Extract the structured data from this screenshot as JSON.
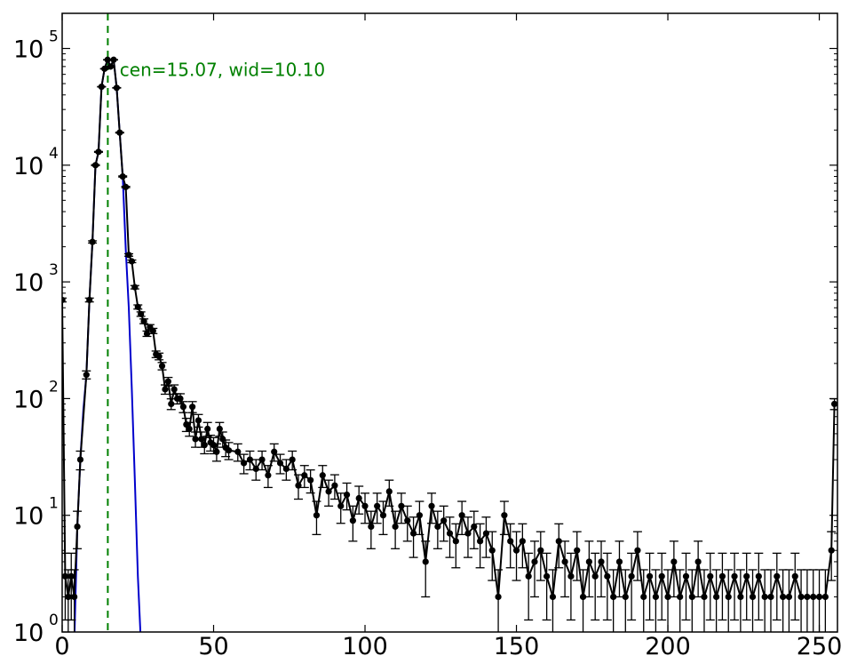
{
  "chart_data": {
    "type": "scatter",
    "title": "",
    "xlabel": "",
    "ylabel": "",
    "xlim": [
      0,
      256
    ],
    "ylim": [
      1,
      200000
    ],
    "yscale": "log",
    "grid": false,
    "x_ticks": [
      0,
      50,
      100,
      150,
      200,
      250
    ],
    "y_ticks": [
      {
        "value": 1,
        "base": "10",
        "exp": "0"
      },
      {
        "value": 10,
        "base": "10",
        "exp": "1"
      },
      {
        "value": 100,
        "base": "10",
        "exp": "2"
      },
      {
        "value": 1000,
        "base": "10",
        "exp": "3"
      },
      {
        "value": 10000,
        "base": "10",
        "exp": "4"
      },
      {
        "value": 100000,
        "base": "10",
        "exp": "5"
      }
    ],
    "annotation": {
      "text": "cen=15.07, wid=10.10",
      "x": 19,
      "y": 100000,
      "color": "#008000"
    },
    "vline": {
      "x": 15.07,
      "color": "#008000",
      "style": "dashed"
    },
    "series": [
      {
        "kind": "data-with-errorbars",
        "color": "#000000",
        "points": [
          [
            0,
            700
          ],
          [
            1,
            3
          ],
          [
            2,
            2
          ],
          [
            3,
            3
          ],
          [
            4,
            2
          ],
          [
            5,
            8
          ],
          [
            6,
            30
          ],
          [
            8,
            160
          ],
          [
            9,
            700
          ],
          [
            10,
            2200
          ],
          [
            11,
            10000
          ],
          [
            12,
            13000
          ],
          [
            13,
            47000
          ],
          [
            14,
            67000
          ],
          [
            15,
            80000
          ],
          [
            16,
            70000
          ],
          [
            17,
            80000
          ],
          [
            18,
            46000
          ],
          [
            19,
            19000
          ],
          [
            20,
            8000
          ],
          [
            21,
            6500
          ],
          [
            22,
            1700
          ],
          [
            23,
            1500
          ],
          [
            24,
            900
          ],
          [
            25,
            610
          ],
          [
            26,
            530
          ],
          [
            27,
            460
          ],
          [
            28,
            360
          ],
          [
            29,
            410
          ],
          [
            30,
            380
          ],
          [
            31,
            240
          ],
          [
            32,
            230
          ],
          [
            33,
            190
          ],
          [
            34,
            120
          ],
          [
            35,
            140
          ],
          [
            36,
            90
          ],
          [
            37,
            120
          ],
          [
            38,
            100
          ],
          [
            39,
            100
          ],
          [
            40,
            85
          ],
          [
            41,
            60
          ],
          [
            42,
            55
          ],
          [
            43,
            85
          ],
          [
            44,
            45
          ],
          [
            45,
            65
          ],
          [
            46,
            45
          ],
          [
            47,
            40
          ],
          [
            48,
            55
          ],
          [
            49,
            42
          ],
          [
            50,
            40
          ],
          [
            51,
            35
          ],
          [
            52,
            55
          ],
          [
            53,
            45
          ],
          [
            54,
            38
          ],
          [
            55,
            36
          ],
          [
            58,
            35
          ],
          [
            60,
            28
          ],
          [
            62,
            30
          ],
          [
            64,
            25
          ],
          [
            66,
            30
          ],
          [
            68,
            22
          ],
          [
            70,
            35
          ],
          [
            72,
            28
          ],
          [
            74,
            25
          ],
          [
            76,
            30
          ],
          [
            78,
            18
          ],
          [
            80,
            22
          ],
          [
            82,
            20
          ],
          [
            84,
            10
          ],
          [
            86,
            22
          ],
          [
            88,
            16
          ],
          [
            90,
            18
          ],
          [
            92,
            12
          ],
          [
            94,
            15
          ],
          [
            96,
            9
          ],
          [
            98,
            14
          ],
          [
            100,
            12
          ],
          [
            102,
            8
          ],
          [
            104,
            12
          ],
          [
            106,
            10
          ],
          [
            108,
            16
          ],
          [
            110,
            8
          ],
          [
            112,
            12
          ],
          [
            114,
            9
          ],
          [
            116,
            7
          ],
          [
            118,
            10
          ],
          [
            120,
            4
          ],
          [
            122,
            12
          ],
          [
            124,
            8
          ],
          [
            126,
            9
          ],
          [
            128,
            7
          ],
          [
            130,
            6
          ],
          [
            132,
            10
          ],
          [
            134,
            7
          ],
          [
            136,
            8
          ],
          [
            138,
            6
          ],
          [
            140,
            7
          ],
          [
            142,
            5
          ],
          [
            144,
            2
          ],
          [
            146,
            10
          ],
          [
            148,
            6
          ],
          [
            150,
            5
          ],
          [
            152,
            6
          ],
          [
            154,
            3
          ],
          [
            156,
            4
          ],
          [
            158,
            5
          ],
          [
            160,
            3
          ],
          [
            162,
            2
          ],
          [
            164,
            6
          ],
          [
            166,
            4
          ],
          [
            168,
            3
          ],
          [
            170,
            5
          ],
          [
            172,
            2
          ],
          [
            174,
            4
          ],
          [
            176,
            3
          ],
          [
            178,
            4
          ],
          [
            180,
            3
          ],
          [
            182,
            2
          ],
          [
            184,
            4
          ],
          [
            186,
            2
          ],
          [
            188,
            3
          ],
          [
            190,
            5
          ],
          [
            192,
            2
          ],
          [
            194,
            3
          ],
          [
            196,
            2
          ],
          [
            198,
            3
          ],
          [
            200,
            2
          ],
          [
            202,
            4
          ],
          [
            204,
            2
          ],
          [
            206,
            3
          ],
          [
            208,
            2
          ],
          [
            210,
            4
          ],
          [
            212,
            2
          ],
          [
            214,
            3
          ],
          [
            216,
            2
          ],
          [
            218,
            3
          ],
          [
            220,
            2
          ],
          [
            222,
            3
          ],
          [
            224,
            2
          ],
          [
            226,
            3
          ],
          [
            228,
            2
          ],
          [
            230,
            3
          ],
          [
            232,
            2
          ],
          [
            234,
            2
          ],
          [
            236,
            3
          ],
          [
            238,
            2
          ],
          [
            240,
            2
          ],
          [
            242,
            3
          ],
          [
            244,
            2
          ],
          [
            246,
            2
          ],
          [
            248,
            2
          ],
          [
            250,
            2
          ],
          [
            252,
            2
          ],
          [
            254,
            5
          ],
          [
            255,
            90
          ]
        ]
      },
      {
        "kind": "gaussian-fit",
        "color": "#0000cc",
        "points": [
          [
            4,
            0.8
          ],
          [
            5,
            8
          ],
          [
            6,
            30
          ],
          [
            7,
            80
          ],
          [
            8,
            160
          ],
          [
            9,
            700
          ],
          [
            10,
            2200
          ],
          [
            11,
            10000
          ],
          [
            12,
            13000
          ],
          [
            13,
            47000
          ],
          [
            14,
            67000
          ],
          [
            15,
            80000
          ],
          [
            16,
            70000
          ],
          [
            17,
            80000
          ],
          [
            18,
            46000
          ],
          [
            19,
            19000
          ],
          [
            20,
            8000
          ],
          [
            21,
            1900
          ],
          [
            22,
            600
          ],
          [
            23,
            120
          ],
          [
            24,
            20
          ],
          [
            25,
            3
          ],
          [
            26,
            0.8
          ]
        ]
      }
    ]
  }
}
